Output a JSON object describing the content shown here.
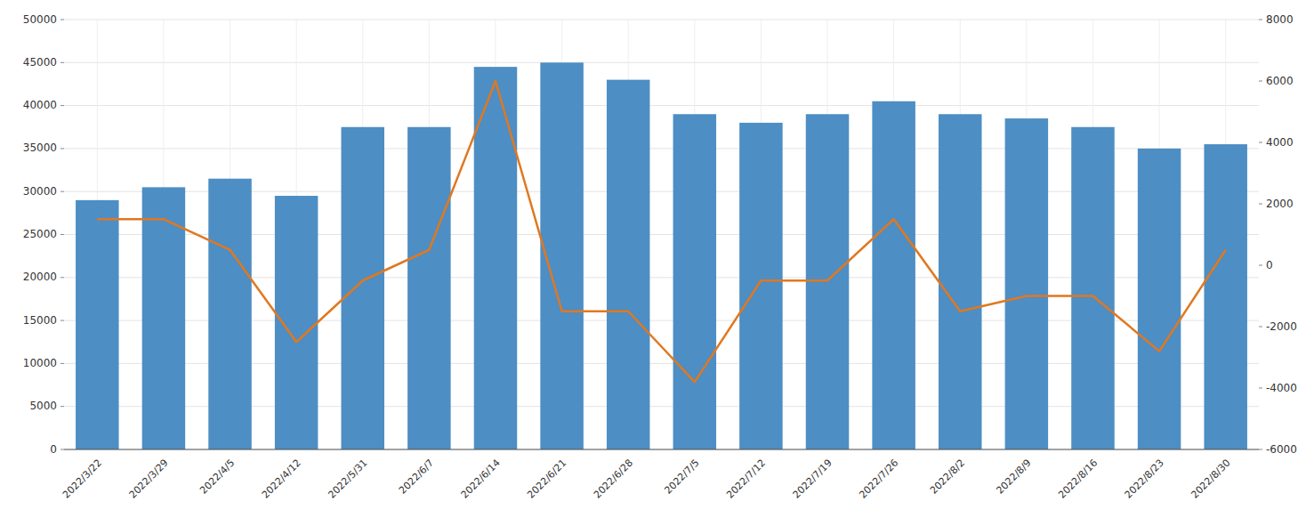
{
  "chart_data": {
    "type": "bar",
    "categories": [
      "2022/3/22",
      "2022/3/29",
      "2022/4/5",
      "2022/4/12",
      "2022/5/31",
      "2022/6/7",
      "2022/6/14",
      "2022/6/21",
      "2022/6/28",
      "2022/7/5",
      "2022/7/12",
      "2022/7/19",
      "2022/7/26",
      "2022/8/2",
      "2022/8/9",
      "2022/8/16",
      "2022/8/23",
      "2022/8/30"
    ],
    "series": [
      {
        "type": "bar",
        "color": "#4d8ec4",
        "values": [
          29000,
          30500,
          31500,
          29500,
          37500,
          37500,
          44500,
          45000,
          43000,
          39000,
          38000,
          39000,
          40500,
          39000,
          38500,
          37500,
          35000,
          35500
        ]
      },
      {
        "type": "line",
        "axis": "y2",
        "color": "#e07820",
        "values": [
          1500,
          1500,
          500,
          -2500,
          -500,
          500,
          6000,
          -1500,
          -1500,
          -3800,
          -500,
          -500,
          1500,
          -1500,
          -1000,
          -1000,
          -2800,
          500
        ]
      }
    ],
    "ylim": [
      0,
      50000
    ],
    "yticks": [
      0,
      5000,
      10000,
      15000,
      20000,
      25000,
      30000,
      35000,
      40000,
      45000,
      50000
    ],
    "y2lim": [
      -6000,
      8000
    ],
    "y2ticks": [
      -6000,
      -4000,
      -2000,
      0,
      2000,
      4000,
      6000,
      8000
    ],
    "grid": true
  }
}
